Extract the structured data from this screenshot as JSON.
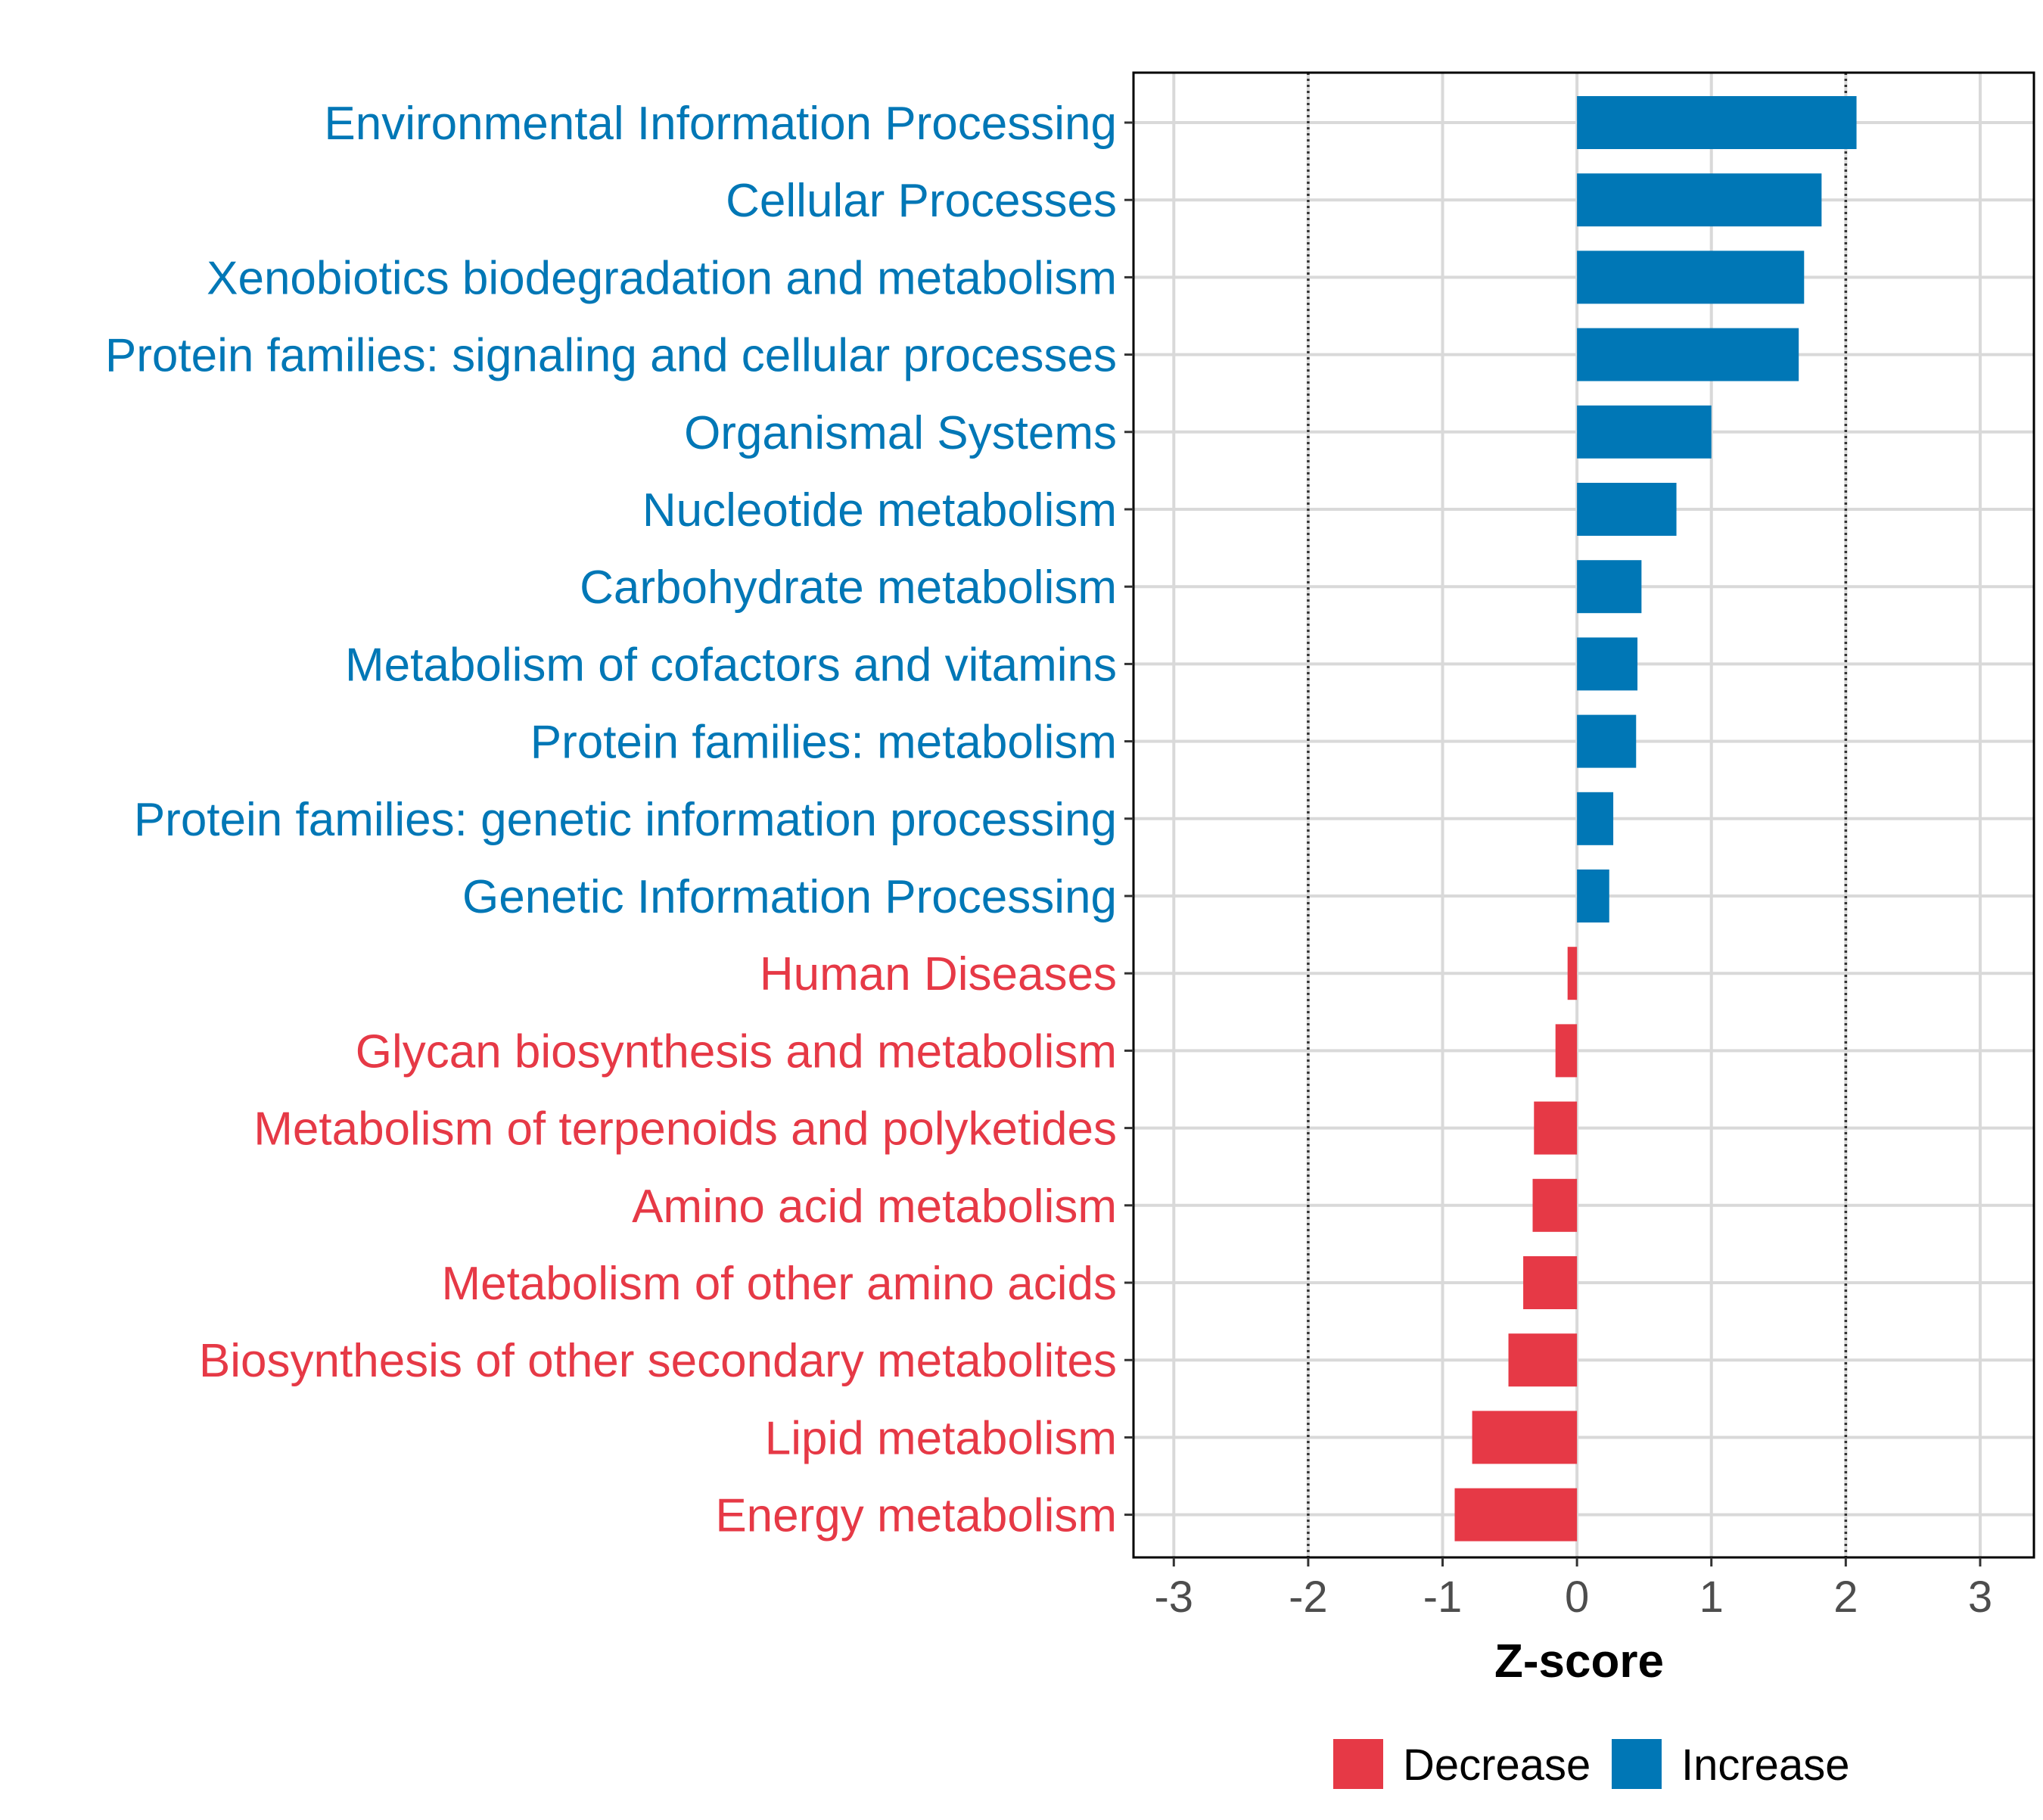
{
  "chart_data": {
    "type": "bar",
    "orientation": "horizontal",
    "xlabel": "Z-score",
    "xlim": [
      -3.3,
      3.4
    ],
    "xticks": [
      -3,
      -2,
      -1,
      0,
      1,
      2,
      3
    ],
    "reference_lines": [
      -2,
      2
    ],
    "grid": true,
    "legend_position": "bottom",
    "colors": {
      "decrease": "#e63946",
      "increase": "#0077b6"
    },
    "legend": [
      {
        "key": "decrease",
        "label": "Decrease"
      },
      {
        "key": "increase",
        "label": "Increase"
      }
    ],
    "categories": [
      {
        "label": "Environmental Information Processing",
        "value": 2.08,
        "direction": "increase"
      },
      {
        "label": "Cellular Processes",
        "value": 1.82,
        "direction": "increase"
      },
      {
        "label": "Xenobiotics biodegradation and metabolism",
        "value": 1.69,
        "direction": "increase"
      },
      {
        "label": "Protein families: signaling and cellular processes",
        "value": 1.65,
        "direction": "increase"
      },
      {
        "label": "Organismal Systems",
        "value": 1.0,
        "direction": "increase"
      },
      {
        "label": "Nucleotide metabolism",
        "value": 0.74,
        "direction": "increase"
      },
      {
        "label": "Carbohydrate metabolism",
        "value": 0.48,
        "direction": "increase"
      },
      {
        "label": "Metabolism of cofactors and vitamins",
        "value": 0.45,
        "direction": "increase"
      },
      {
        "label": "Protein families: metabolism",
        "value": 0.44,
        "direction": "increase"
      },
      {
        "label": "Protein families: genetic information processing",
        "value": 0.27,
        "direction": "increase"
      },
      {
        "label": "Genetic Information Processing",
        "value": 0.24,
        "direction": "increase"
      },
      {
        "label": "Human Diseases",
        "value": -0.07,
        "direction": "decrease"
      },
      {
        "label": "Glycan biosynthesis and metabolism",
        "value": -0.16,
        "direction": "decrease"
      },
      {
        "label": "Metabolism of terpenoids and polyketides",
        "value": -0.32,
        "direction": "decrease"
      },
      {
        "label": "Amino acid metabolism",
        "value": -0.33,
        "direction": "decrease"
      },
      {
        "label": "Metabolism of other amino acids",
        "value": -0.4,
        "direction": "decrease"
      },
      {
        "label": "Biosynthesis of other secondary metabolites",
        "value": -0.51,
        "direction": "decrease"
      },
      {
        "label": "Lipid metabolism",
        "value": -0.78,
        "direction": "decrease"
      },
      {
        "label": "Energy metabolism",
        "value": -0.91,
        "direction": "decrease"
      }
    ]
  }
}
